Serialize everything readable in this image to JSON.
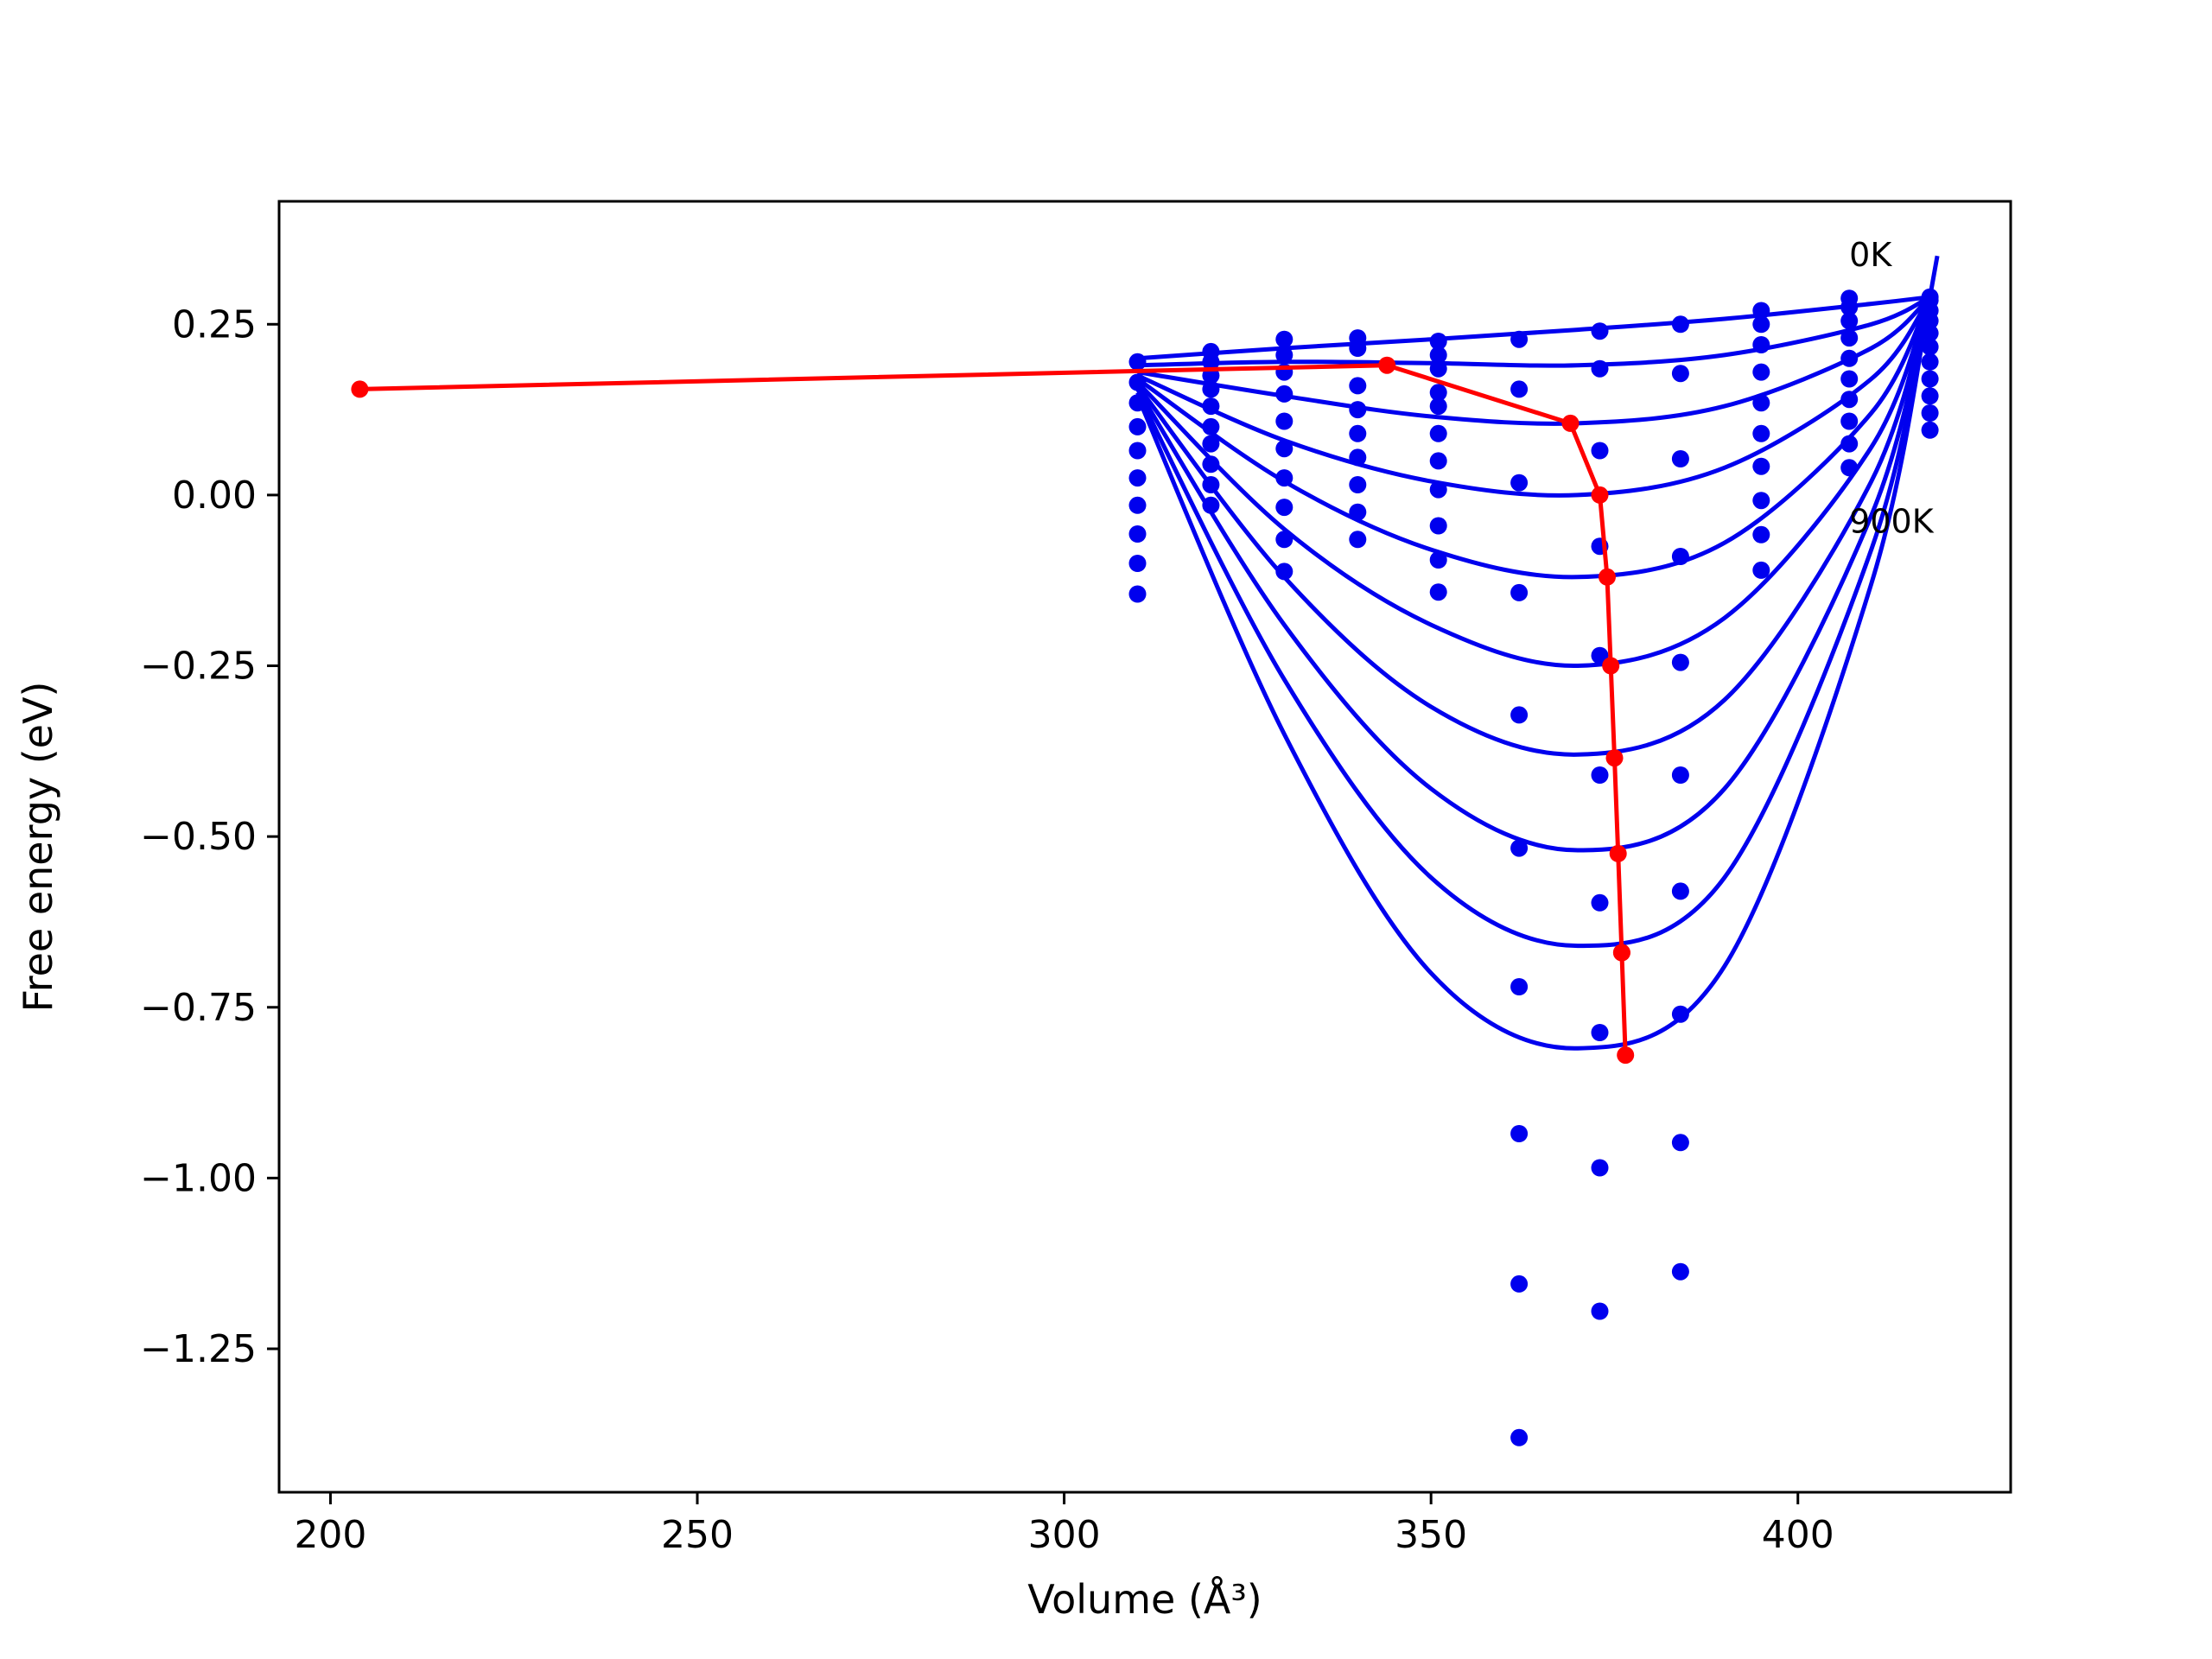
{
  "chart_data": {
    "type": "line",
    "title": "",
    "xlabel": "Volume (Å³)",
    "ylabel": "Free energy (eV)",
    "xlim": [
      193,
      429
    ],
    "ylim": [
      -1.46,
      0.43
    ],
    "xticks": [
      200,
      250,
      300,
      350,
      400
    ],
    "xtick_labels": [
      "200",
      "250",
      "300",
      "350",
      "400"
    ],
    "yticks": [
      -1.25,
      -1.0,
      -0.75,
      -0.5,
      -0.25,
      0.0,
      0.25
    ],
    "ytick_labels": [
      "−1.25",
      "−1.00",
      "−0.75",
      "−0.50",
      "−0.25",
      "0.00",
      "0.25"
    ],
    "grid": false,
    "legend": "none",
    "colors": {
      "fit": "#0000ee",
      "points": "#0000ee",
      "equilibrium": "#ff0000"
    },
    "annotations": [
      {
        "text": "0K",
        "x": 407,
        "y": 0.35
      },
      {
        "text": "900K",
        "x": 407,
        "y": -0.04
      }
    ],
    "fit_curves": [
      {
        "x": [
          310,
          330,
          350,
          370,
          390,
          410,
          418
        ],
        "y": [
          0.2,
          0.215,
          0.228,
          0.242,
          0.258,
          0.28,
          0.29
        ]
      },
      {
        "x": [
          310,
          330,
          350,
          370,
          390,
          410,
          418
        ],
        "y": [
          0.19,
          0.195,
          0.193,
          0.19,
          0.205,
          0.25,
          0.29
        ]
      },
      {
        "x": [
          310,
          330,
          350,
          370,
          390,
          410,
          418
        ],
        "y": [
          0.18,
          0.145,
          0.115,
          0.105,
          0.13,
          0.215,
          0.29
        ]
      },
      {
        "x": [
          310,
          330,
          350,
          370,
          390,
          410,
          418
        ],
        "y": [
          0.175,
          0.08,
          0.02,
          0.0,
          0.04,
          0.17,
          0.29
        ]
      },
      {
        "x": [
          310,
          330,
          350,
          370,
          390,
          410,
          418
        ],
        "y": [
          0.17,
          0.02,
          -0.08,
          -0.12,
          -0.07,
          0.12,
          0.29
        ]
      },
      {
        "x": [
          310,
          330,
          350,
          370,
          390,
          410,
          418
        ],
        "y": [
          0.165,
          -0.05,
          -0.19,
          -0.25,
          -0.18,
          0.07,
          0.29
        ]
      },
      {
        "x": [
          310,
          330,
          350,
          370,
          390,
          410,
          418
        ],
        "y": [
          0.16,
          -0.12,
          -0.31,
          -0.38,
          -0.3,
          0.02,
          0.29
        ]
      },
      {
        "x": [
          310,
          330,
          350,
          370,
          390,
          410,
          418
        ],
        "y": [
          0.155,
          -0.19,
          -0.43,
          -0.52,
          -0.43,
          -0.03,
          0.29
        ]
      },
      {
        "x": [
          310,
          330,
          350,
          370,
          390,
          410,
          418
        ],
        "y": [
          0.15,
          -0.27,
          -0.56,
          -0.66,
          -0.56,
          -0.08,
          0.29
        ]
      },
      {
        "x": [
          310,
          330,
          350,
          370,
          390,
          410,
          418
        ],
        "y": [
          0.145,
          -0.35,
          -0.7,
          -0.81,
          -0.69,
          -0.13,
          0.29
        ]
      }
    ],
    "fit_extension": {
      "x": [
        418,
        419
      ],
      "y": [
        0.29,
        0.35
      ]
    },
    "points": [
      {
        "x": 310,
        "y": [
          0.195,
          0.165,
          0.135,
          0.1,
          0.065,
          0.025,
          -0.015,
          -0.057,
          -0.1,
          -0.145
        ]
      },
      {
        "x": 320,
        "y": [
          0.21,
          0.195,
          0.175,
          0.155,
          0.13,
          0.1,
          0.075,
          0.045,
          0.015,
          -0.015
        ]
      },
      {
        "x": 330,
        "y": [
          0.228,
          0.205,
          0.18,
          0.148,
          0.108,
          0.068,
          0.025,
          -0.018,
          -0.065,
          -0.112
        ]
      },
      {
        "x": 340,
        "y": [
          0.23,
          0.215,
          0.16,
          0.125,
          0.09,
          0.055,
          0.015,
          -0.025,
          -0.065
        ]
      },
      {
        "x": 351,
        "y": [
          0.225,
          0.205,
          0.185,
          0.15,
          0.13,
          0.09,
          0.05,
          0.008,
          -0.045,
          -0.095,
          -0.142
        ]
      },
      {
        "x": 362,
        "y": [
          0.228,
          0.155,
          0.018,
          -0.143,
          -0.322,
          -0.517,
          -0.72,
          -0.935,
          -1.155,
          -1.38
        ]
      },
      {
        "x": 373,
        "y": [
          0.24,
          0.185,
          0.065,
          -0.075,
          -0.235,
          -0.41,
          -0.597,
          -0.787,
          -0.985,
          -1.195
        ]
      },
      {
        "x": 384,
        "y": [
          0.25,
          0.178,
          0.053,
          -0.09,
          -0.245,
          -0.41,
          -0.58,
          -0.76,
          -0.948,
          -1.137
        ]
      },
      {
        "x": 395,
        "y": [
          0.27,
          0.25,
          0.22,
          0.18,
          0.135,
          0.09,
          0.042,
          -0.008,
          -0.058,
          -0.11
        ]
      },
      {
        "x": 407,
        "y": [
          0.288,
          0.275,
          0.255,
          0.23,
          0.2,
          0.17,
          0.14,
          0.108,
          0.075,
          0.04
        ]
      },
      {
        "x": 418,
        "y": [
          0.29,
          0.285,
          0.27,
          0.255,
          0.237,
          0.217,
          0.195,
          0.17,
          0.145,
          0.12,
          0.095
        ]
      }
    ],
    "equilibrium_line": {
      "x": [
        204,
        344,
        369,
        373,
        374,
        374.5,
        375,
        375.5,
        376,
        376,
        376.5
      ],
      "y": [
        0.155,
        0.19,
        0.105,
        0.0,
        -0.12,
        -0.25,
        -0.385,
        -0.525,
        -0.67,
        -0.67,
        -0.82
      ]
    }
  }
}
